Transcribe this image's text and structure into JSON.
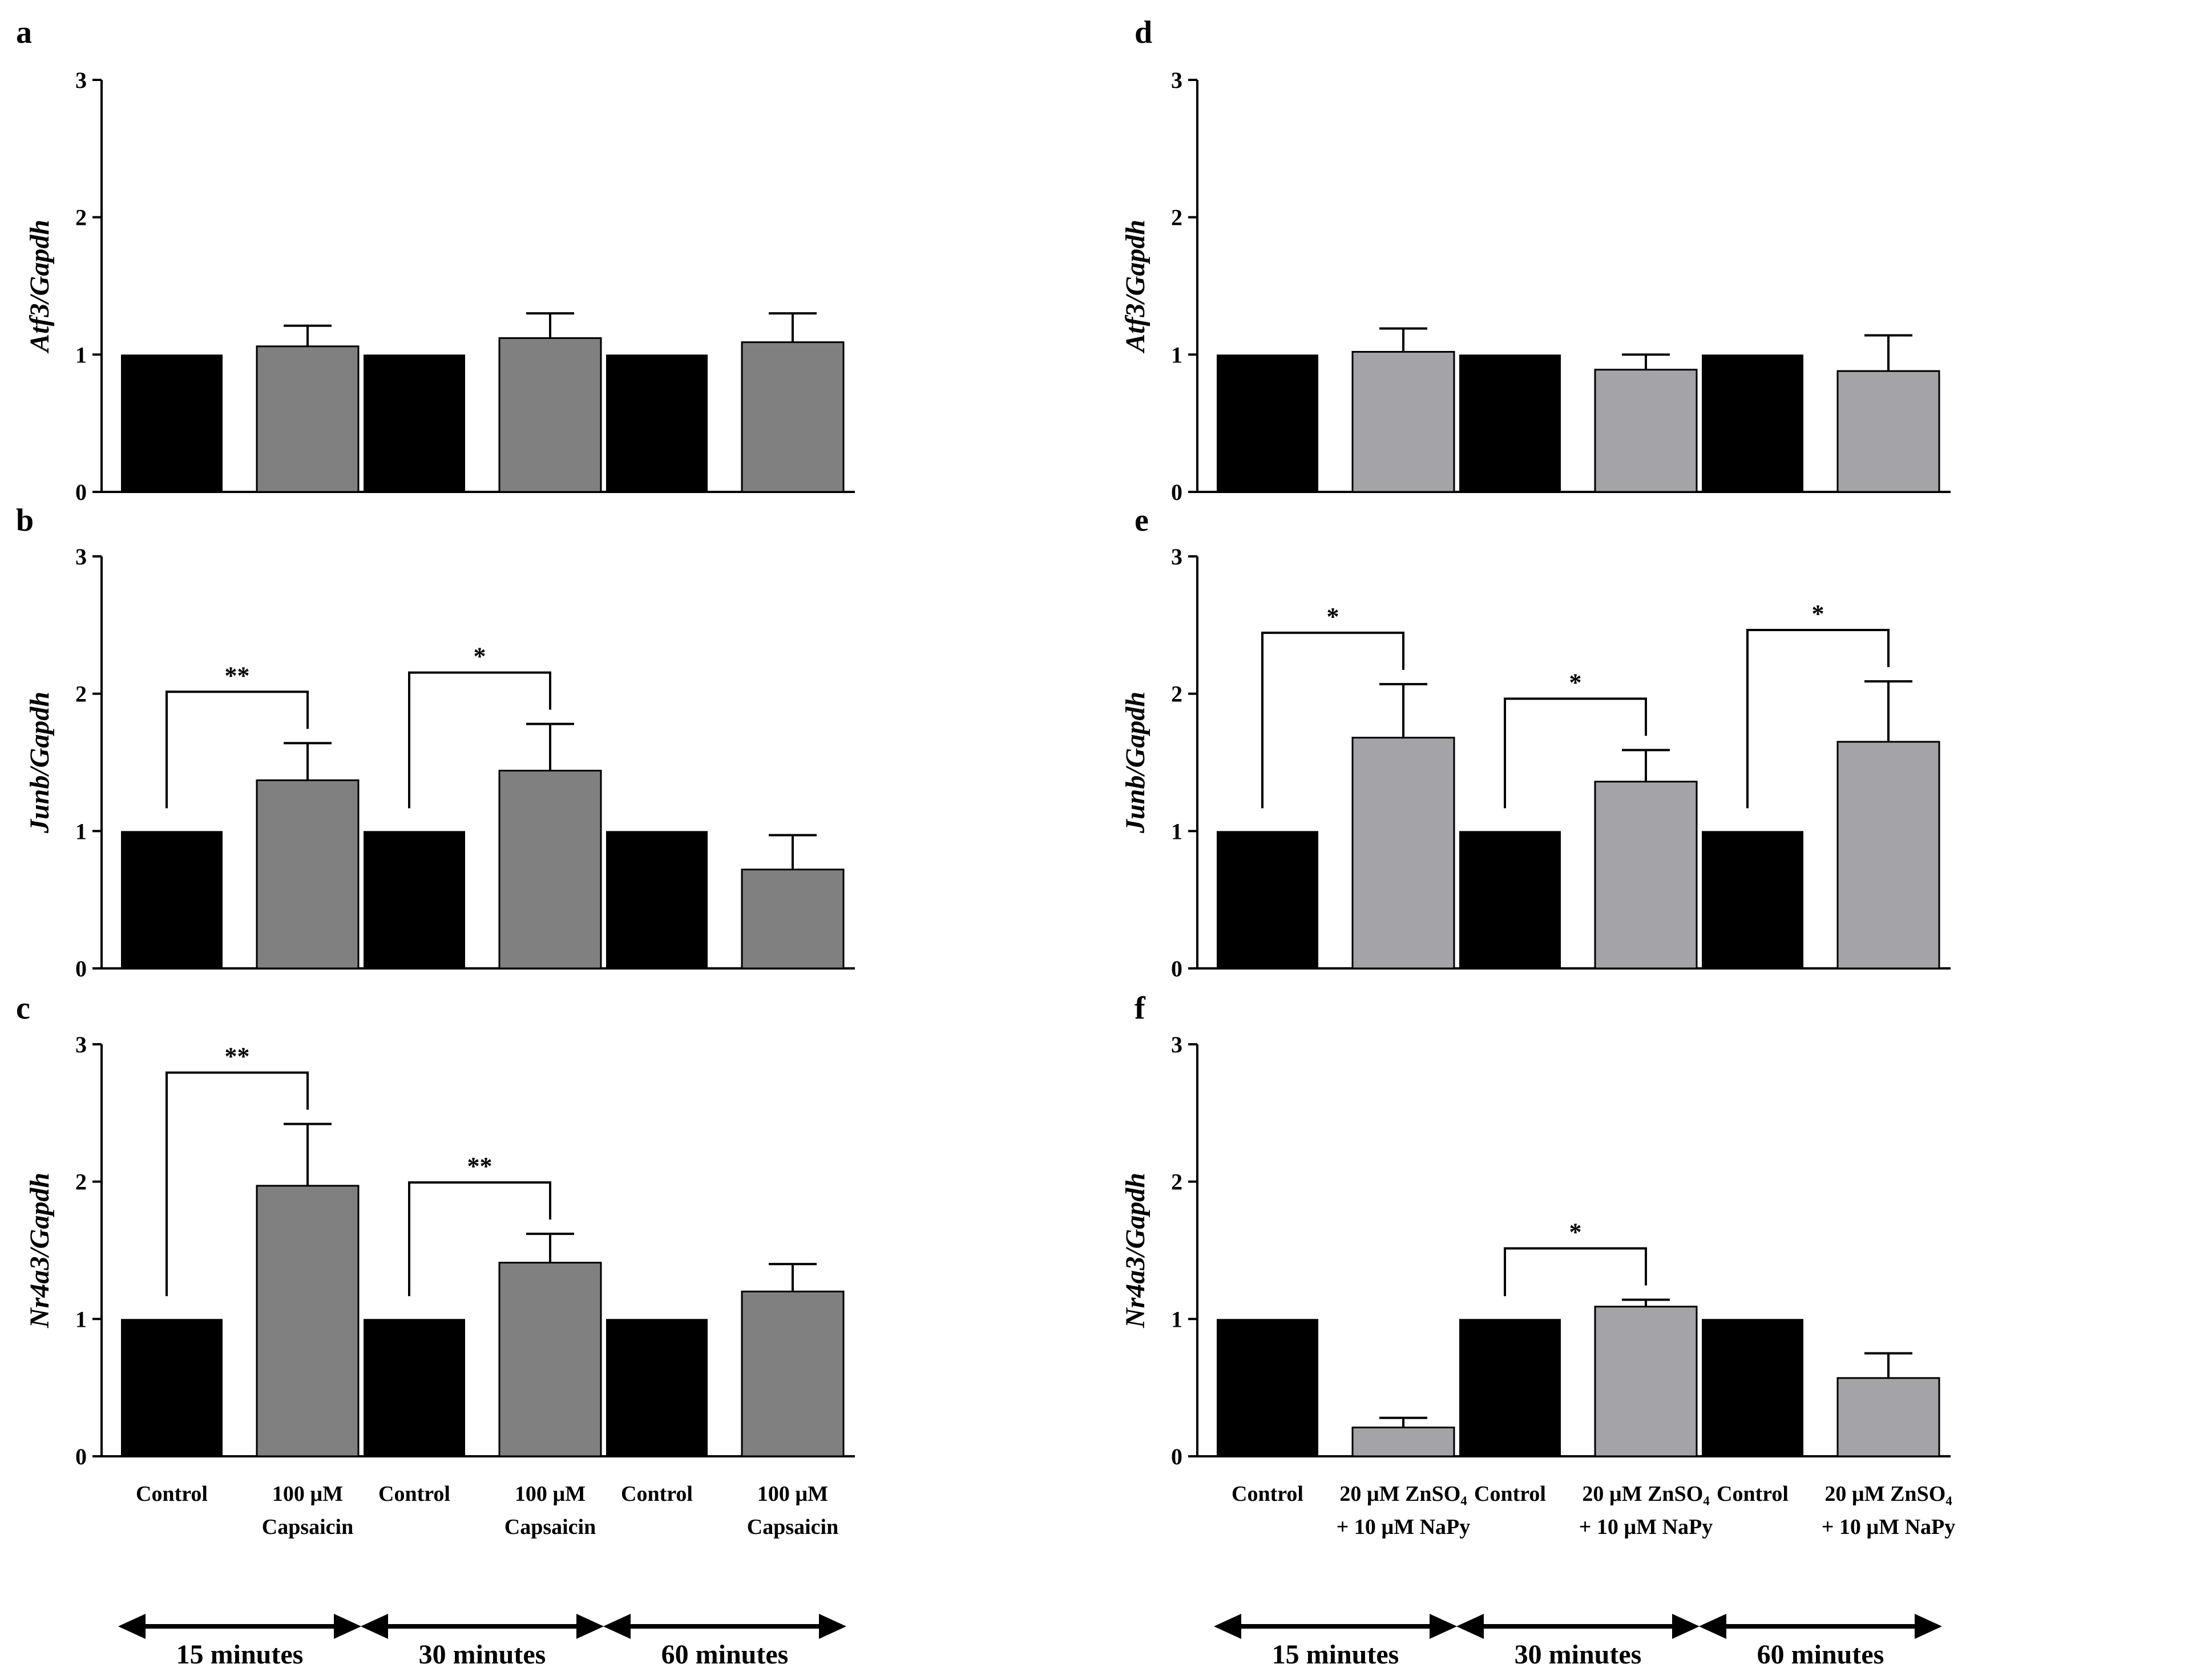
{
  "colors": {
    "control": "#000000",
    "capsaicin": "#808080",
    "zinc": "#a3a3a8",
    "axis": "#000000"
  },
  "group_labels": {
    "left": [
      {
        "line1": "Control",
        "line2": ""
      },
      {
        "line1": "100 µM",
        "line2": "Capsaicin"
      }
    ],
    "right": [
      {
        "line1": "Control",
        "line2": ""
      },
      {
        "line1": "20 µM ZnSO₄",
        "line2": "+ 10 µM NaPy"
      }
    ]
  },
  "time_labels": [
    "15 minutes",
    "30 minutes",
    "60 minutes"
  ],
  "chart_data": [
    {
      "panel": "a",
      "type": "bar",
      "ylabel": "Atf3/Gapdh",
      "ylim": [
        0,
        3
      ],
      "yticks": [
        0,
        1,
        2,
        3
      ],
      "categories": [
        "15 minutes",
        "30 minutes",
        "60 minutes"
      ],
      "series": [
        {
          "name": "Control",
          "values": [
            1.0,
            1.0,
            1.0
          ],
          "errors": [
            0,
            0,
            0
          ]
        },
        {
          "name": "100 µM Capsaicin",
          "values": [
            1.06,
            1.12,
            1.09
          ],
          "errors": [
            0.15,
            0.18,
            0.21
          ]
        }
      ],
      "significance": [
        "",
        "",
        ""
      ]
    },
    {
      "panel": "b",
      "type": "bar",
      "ylabel": "Junb/Gapdh",
      "ylim": [
        0,
        3
      ],
      "yticks": [
        0,
        1,
        2,
        3
      ],
      "categories": [
        "15 minutes",
        "30 minutes",
        "60 minutes"
      ],
      "series": [
        {
          "name": "Control",
          "values": [
            1.0,
            1.0,
            1.0
          ],
          "errors": [
            0,
            0,
            0
          ]
        },
        {
          "name": "100 µM Capsaicin",
          "values": [
            1.37,
            1.44,
            0.72
          ],
          "errors": [
            0.27,
            0.34,
            0.25
          ]
        }
      ],
      "significance": [
        "**",
        "*",
        ""
      ]
    },
    {
      "panel": "c",
      "type": "bar",
      "ylabel": "Nr4a3/Gapdh",
      "ylim": [
        0,
        3
      ],
      "yticks": [
        0,
        1,
        2,
        3
      ],
      "categories": [
        "15 minutes",
        "30 minutes",
        "60 minutes"
      ],
      "series": [
        {
          "name": "Control",
          "values": [
            1.0,
            1.0,
            1.0
          ],
          "errors": [
            0,
            0,
            0
          ]
        },
        {
          "name": "100 µM Capsaicin",
          "values": [
            1.97,
            1.41,
            1.2
          ],
          "errors": [
            0.45,
            0.21,
            0.2
          ]
        }
      ],
      "significance": [
        "**",
        "**",
        ""
      ]
    },
    {
      "panel": "d",
      "type": "bar",
      "ylabel": "Atf3/Gapdh",
      "ylim": [
        0,
        3
      ],
      "yticks": [
        0,
        1,
        2,
        3
      ],
      "categories": [
        "15 minutes",
        "30 minutes",
        "60 minutes"
      ],
      "series": [
        {
          "name": "Control",
          "values": [
            1.0,
            1.0,
            1.0
          ],
          "errors": [
            0,
            0,
            0
          ]
        },
        {
          "name": "20 µM ZnSO4 + 10 µM NaPy",
          "values": [
            1.02,
            0.89,
            0.88
          ],
          "errors": [
            0.17,
            0.11,
            0.26
          ]
        }
      ],
      "significance": [
        "",
        "",
        ""
      ]
    },
    {
      "panel": "e",
      "type": "bar",
      "ylabel": "Junb/Gapdh",
      "ylim": [
        0,
        3
      ],
      "yticks": [
        0,
        1,
        2,
        3
      ],
      "categories": [
        "15 minutes",
        "30 minutes",
        "60 minutes"
      ],
      "series": [
        {
          "name": "Control",
          "values": [
            1.0,
            1.0,
            1.0
          ],
          "errors": [
            0,
            0,
            0
          ]
        },
        {
          "name": "20 µM ZnSO4 + 10 µM NaPy",
          "values": [
            1.68,
            1.36,
            1.65
          ],
          "errors": [
            0.39,
            0.23,
            0.44
          ]
        }
      ],
      "significance": [
        "*",
        "*",
        "*"
      ]
    },
    {
      "panel": "f",
      "type": "bar",
      "ylabel": "Nr4a3/Gapdh",
      "ylim": [
        0,
        3
      ],
      "yticks": [
        0,
        1,
        2,
        3
      ],
      "categories": [
        "15 minutes",
        "30 minutes",
        "60 minutes"
      ],
      "series": [
        {
          "name": "Control",
          "values": [
            1.0,
            1.0,
            1.0
          ],
          "errors": [
            0,
            0,
            0
          ]
        },
        {
          "name": "20 µM ZnSO4 + 10 µM NaPy",
          "values": [
            0.21,
            1.09,
            0.57
          ],
          "errors": [
            0.07,
            0.05,
            0.18
          ]
        }
      ],
      "significance": [
        "",
        "*",
        ""
      ]
    }
  ]
}
